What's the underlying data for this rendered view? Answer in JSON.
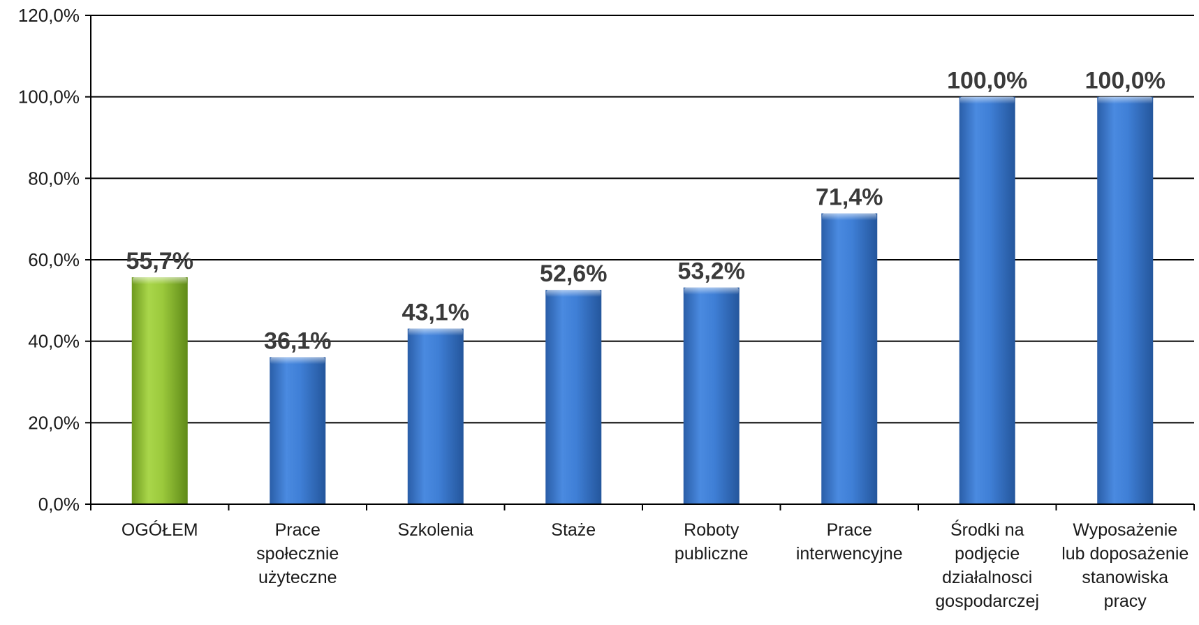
{
  "chart_data": {
    "type": "bar",
    "title": "",
    "xlabel": "",
    "ylabel": "",
    "ylim": [
      0,
      120
    ],
    "yticks": [
      0,
      20,
      40,
      60,
      80,
      100,
      120
    ],
    "ytick_labels": [
      "0,0%",
      "20,0%",
      "40,0%",
      "60,0%",
      "80,0%",
      "100,0%",
      "120,0%"
    ],
    "grid": true,
    "legend": "none",
    "categories": [
      [
        "OGÓŁEM"
      ],
      [
        "Prace",
        "społecznie",
        "użyteczne"
      ],
      [
        "Szkolenia"
      ],
      [
        "Staże"
      ],
      [
        "Roboty",
        "publiczne"
      ],
      [
        "Prace",
        "interwencyjne"
      ],
      [
        "Środki na",
        "podjęcie",
        "działalnosci",
        "gospodarczej"
      ],
      [
        "Wyposażenie",
        "lub doposażenie",
        "stanowiska",
        "pracy"
      ]
    ],
    "values": [
      55.7,
      36.1,
      43.1,
      52.6,
      53.2,
      71.4,
      100.0,
      100.0
    ],
    "value_labels": [
      "55,7%",
      "36,1%",
      "43,1%",
      "52,6%",
      "53,2%",
      "71,4%",
      "100,0%",
      "100,0%"
    ],
    "colors": {
      "highlight": "#8fbf2f",
      "default": "#3a78c9",
      "axis": "#000000",
      "gridline": "#000000"
    },
    "highlight_index": 0
  }
}
